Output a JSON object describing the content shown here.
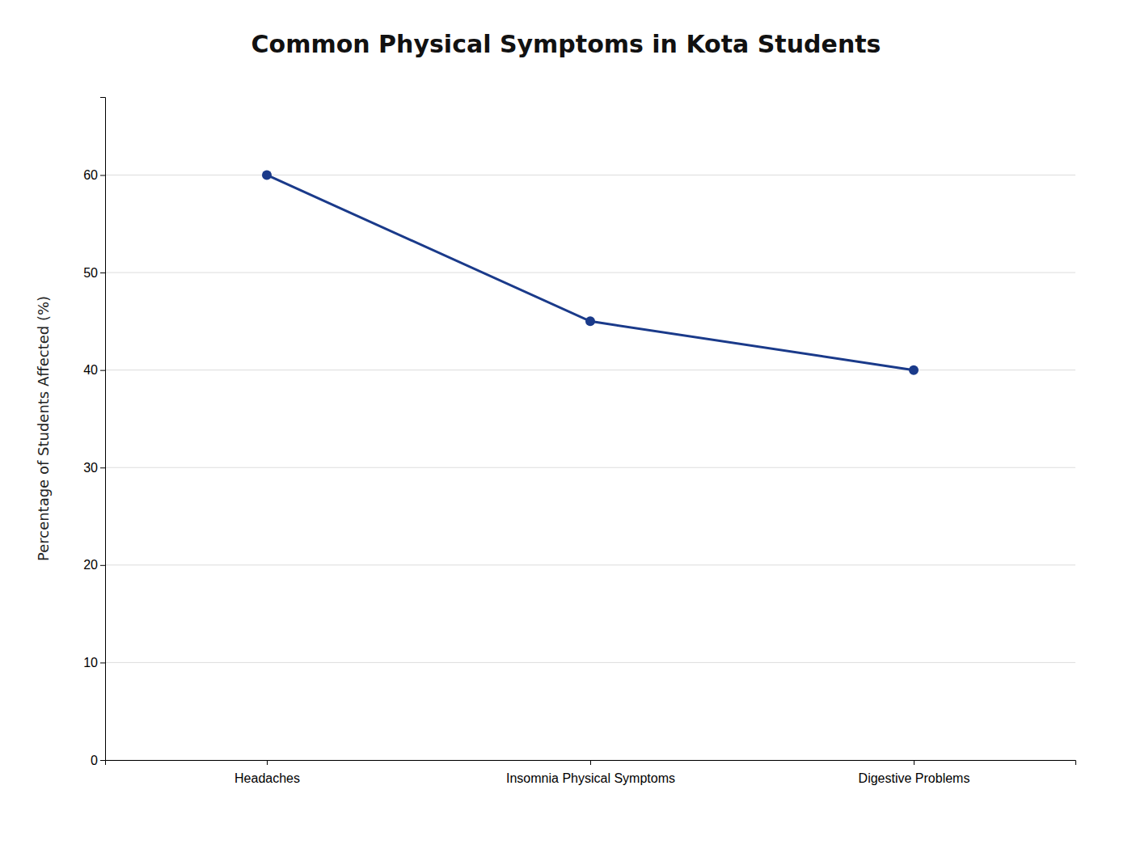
{
  "chart_data": {
    "type": "line",
    "title": "Common Physical Symptoms in Kota Students",
    "ylabel": "Percentage of Students Affected (%)",
    "categories": [
      "Headaches",
      "Insomnia Physical Symptoms",
      "Digestive Problems"
    ],
    "values": [
      60,
      45,
      40
    ],
    "color": "#1a3a8a",
    "marker": "circle",
    "ylim": [
      0,
      68
    ],
    "yticks": [
      0,
      10,
      20,
      30,
      40,
      50,
      60
    ],
    "grid": true
  }
}
